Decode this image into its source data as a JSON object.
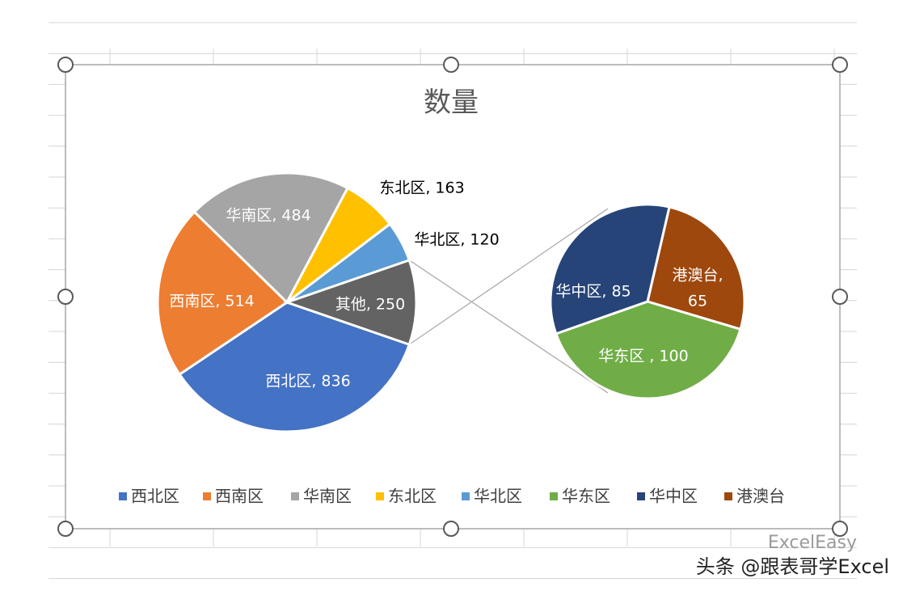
{
  "colors": {
    "gridline": "#d4d4d4",
    "frame": "#a6a6a6",
    "handle_fill": "#ffffff",
    "handle_stroke": "#595959",
    "connector": "#a6a6a6",
    "slice_border": "#ffffff"
  },
  "chart_data": {
    "type": "pie-of-pie",
    "title": "数量",
    "primary": [
      {
        "name": "西北区",
        "value": 836,
        "color": "#4472c4"
      },
      {
        "name": "西南区",
        "value": 514,
        "color": "#ed7d31"
      },
      {
        "name": "华南区",
        "value": 484,
        "color": "#a5a5a5"
      },
      {
        "name": "东北区",
        "value": 163,
        "color": "#ffc000"
      },
      {
        "name": "华北区",
        "value": 120,
        "color": "#5b9bd5"
      },
      {
        "name": "其他",
        "value": 250,
        "color": "#636363"
      }
    ],
    "secondary": [
      {
        "name": "华东区",
        "value": 100,
        "color": "#70ad47"
      },
      {
        "name": "华中区",
        "value": 85,
        "color": "#264478"
      },
      {
        "name": "港澳台",
        "value": 65,
        "color": "#9e480e"
      }
    ],
    "data_labels": [
      {
        "text": "西北区, 836",
        "color": "#ffffff"
      },
      {
        "text": "西南区, 514",
        "color": "#ffffff"
      },
      {
        "text": "华南区, 484",
        "color": "#ffffff"
      },
      {
        "text": "东北区, 163",
        "color": "#000000"
      },
      {
        "text": "华北区, 120",
        "color": "#000000"
      },
      {
        "text": "其他, 250",
        "color": "#ffffff"
      },
      {
        "text": "华东区 , 100",
        "color": "#ffffff"
      },
      {
        "text": "华中区, 85",
        "color": "#ffffff"
      },
      {
        "text": "港澳台,",
        "color": "#ffffff"
      },
      {
        "text": "65",
        "color": "#ffffff"
      }
    ],
    "legend": {
      "position": "bottom",
      "entries": [
        {
          "name": "西北区",
          "color": "#4472c4"
        },
        {
          "name": "西南区",
          "color": "#ed7d31"
        },
        {
          "name": "华南区",
          "color": "#a5a5a5"
        },
        {
          "name": "东北区",
          "color": "#ffc000"
        },
        {
          "name": "华北区",
          "color": "#5b9bd5"
        },
        {
          "name": "华东区",
          "color": "#70ad47"
        },
        {
          "name": "华中区",
          "color": "#264478"
        },
        {
          "name": "港澳台",
          "color": "#9e480e"
        }
      ]
    }
  },
  "watermark": {
    "text": "头条 @跟表哥学Excel",
    "ghost": "ExcelEasy"
  }
}
